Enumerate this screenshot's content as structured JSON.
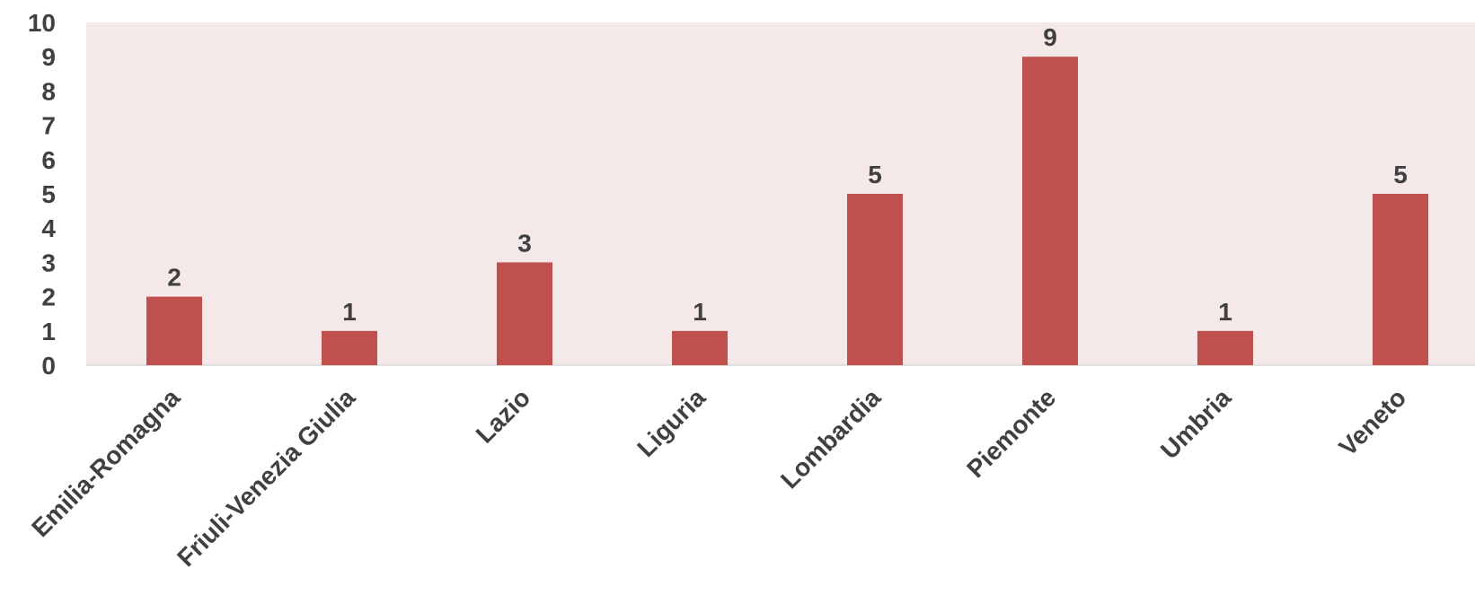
{
  "colors": {
    "plot_background": "#f5e8e8",
    "bar": "#c0504d",
    "axis_line": "#d9d9d9",
    "text": "#404040"
  },
  "chart_data": {
    "type": "bar",
    "categories": [
      "Emilia-Romagna",
      "Friuli-Venezia Giulia",
      "Lazio",
      "Liguria",
      "Lombardia",
      "Piemonte",
      "Umbria",
      "Veneto"
    ],
    "values": [
      2,
      1,
      3,
      1,
      5,
      9,
      1,
      5
    ],
    "ylim": [
      0,
      10
    ],
    "yticks": [
      0,
      1,
      2,
      3,
      4,
      5,
      6,
      7,
      8,
      9,
      10
    ],
    "title": "",
    "xlabel": "",
    "ylabel": "",
    "grid": false,
    "data_labels": true
  }
}
